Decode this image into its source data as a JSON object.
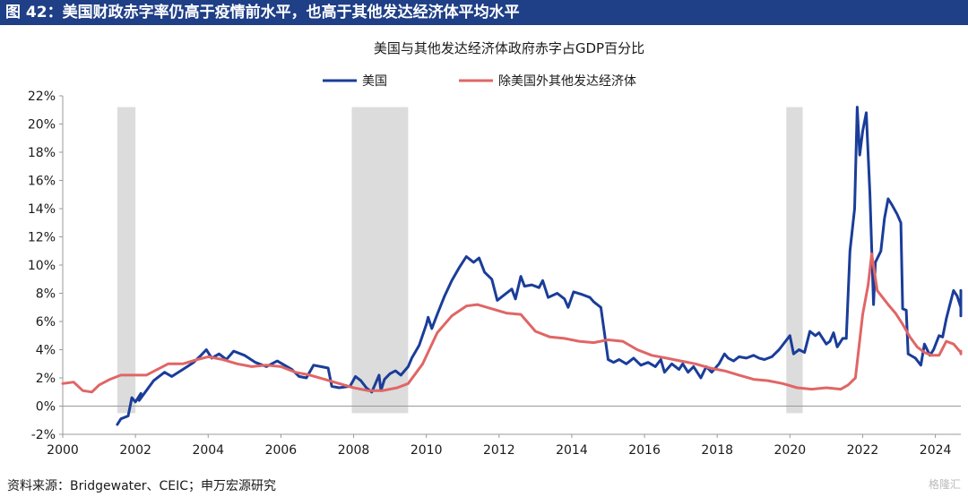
{
  "figure_title": "图 42：美国财政赤字率仍高于疫情前水平，也高于其他发达经济体平均水平",
  "source": "资料来源：Bridgewater、CEIC；申万宏源研究",
  "watermark": "格隆汇",
  "colors": {
    "header_bg": "#1f3f86",
    "us": "#1a3d99",
    "others": "#e06666",
    "shade": "#dcdcdc"
  },
  "chart_data": {
    "type": "line",
    "title": "美国与其他发达经济体政府赤字占GDP百分比",
    "xlim": [
      2000,
      2024.7
    ],
    "ylim": [
      -2,
      22
    ],
    "xticks": [
      2000,
      2002,
      2004,
      2006,
      2008,
      2010,
      2012,
      2014,
      2016,
      2018,
      2020,
      2022,
      2024
    ],
    "yticks": [
      -2,
      0,
      2,
      4,
      6,
      8,
      10,
      12,
      14,
      16,
      18,
      20,
      22
    ],
    "ytick_labels": [
      "-2%",
      "0%",
      "2%",
      "4%",
      "6%",
      "8%",
      "10%",
      "12%",
      "14%",
      "16%",
      "18%",
      "20%",
      "22%"
    ],
    "legend_position": "top-center",
    "recessions": [
      [
        2001.5,
        2002.0
      ],
      [
        2007.95,
        2009.5
      ],
      [
        2019.9,
        2020.35
      ]
    ],
    "series": [
      {
        "name": "美国",
        "color": "#1a3d99",
        "points": [
          [
            2001.5,
            -1.3
          ],
          [
            2001.6,
            -0.9
          ],
          [
            2001.8,
            -0.7
          ],
          [
            2001.9,
            0.6
          ],
          [
            2002.0,
            0.3
          ],
          [
            2002.15,
            0.9
          ],
          [
            2002.1,
            0.4
          ],
          [
            2002.3,
            1.1
          ],
          [
            2002.5,
            1.8
          ],
          [
            2002.8,
            2.4
          ],
          [
            2003.0,
            2.1
          ],
          [
            2003.3,
            2.6
          ],
          [
            2003.6,
            3.1
          ],
          [
            2003.8,
            3.6
          ],
          [
            2003.95,
            4.0
          ],
          [
            2004.1,
            3.4
          ],
          [
            2004.3,
            3.7
          ],
          [
            2004.5,
            3.3
          ],
          [
            2004.7,
            3.9
          ],
          [
            2005.0,
            3.6
          ],
          [
            2005.3,
            3.1
          ],
          [
            2005.6,
            2.8
          ],
          [
            2005.9,
            3.2
          ],
          [
            2006.1,
            2.9
          ],
          [
            2006.3,
            2.6
          ],
          [
            2006.5,
            2.1
          ],
          [
            2006.7,
            2.0
          ],
          [
            2006.9,
            2.9
          ],
          [
            2007.1,
            2.8
          ],
          [
            2007.3,
            2.7
          ],
          [
            2007.4,
            1.4
          ],
          [
            2007.6,
            1.3
          ],
          [
            2007.9,
            1.4
          ],
          [
            2008.05,
            2.1
          ],
          [
            2008.2,
            1.8
          ],
          [
            2008.35,
            1.3
          ],
          [
            2008.5,
            1.0
          ],
          [
            2008.6,
            1.6
          ],
          [
            2008.7,
            2.2
          ],
          [
            2008.75,
            1.1
          ],
          [
            2008.85,
            1.9
          ],
          [
            2009.0,
            2.3
          ],
          [
            2009.15,
            2.5
          ],
          [
            2009.3,
            2.2
          ],
          [
            2009.5,
            2.8
          ],
          [
            2009.6,
            3.4
          ],
          [
            2009.8,
            4.3
          ],
          [
            2010.0,
            5.8
          ],
          [
            2010.05,
            6.3
          ],
          [
            2010.15,
            5.5
          ],
          [
            2010.3,
            6.5
          ],
          [
            2010.5,
            7.8
          ],
          [
            2010.7,
            8.9
          ],
          [
            2010.9,
            9.8
          ],
          [
            2011.1,
            10.6
          ],
          [
            2011.3,
            10.2
          ],
          [
            2011.45,
            10.5
          ],
          [
            2011.6,
            9.5
          ],
          [
            2011.8,
            9.0
          ],
          [
            2011.95,
            7.5
          ],
          [
            2012.15,
            7.9
          ],
          [
            2012.35,
            8.3
          ],
          [
            2012.45,
            7.6
          ],
          [
            2012.6,
            9.2
          ],
          [
            2012.7,
            8.5
          ],
          [
            2012.9,
            8.6
          ],
          [
            2013.1,
            8.4
          ],
          [
            2013.2,
            8.9
          ],
          [
            2013.35,
            7.7
          ],
          [
            2013.6,
            8.0
          ],
          [
            2013.8,
            7.6
          ],
          [
            2013.9,
            7.0
          ],
          [
            2014.05,
            8.1
          ],
          [
            2014.3,
            7.9
          ],
          [
            2014.5,
            7.7
          ],
          [
            2014.6,
            7.4
          ],
          [
            2014.8,
            7.0
          ],
          [
            2015.0,
            3.3
          ],
          [
            2015.15,
            3.1
          ],
          [
            2015.3,
            3.3
          ],
          [
            2015.5,
            3.0
          ],
          [
            2015.7,
            3.4
          ],
          [
            2015.9,
            2.9
          ],
          [
            2016.1,
            3.1
          ],
          [
            2016.3,
            2.8
          ],
          [
            2016.45,
            3.3
          ],
          [
            2016.55,
            2.4
          ],
          [
            2016.75,
            3.0
          ],
          [
            2016.95,
            2.6
          ],
          [
            2017.05,
            3.0
          ],
          [
            2017.2,
            2.4
          ],
          [
            2017.35,
            2.8
          ],
          [
            2017.55,
            2.0
          ],
          [
            2017.7,
            2.8
          ],
          [
            2017.85,
            2.4
          ],
          [
            2018.05,
            3.0
          ],
          [
            2018.2,
            3.7
          ],
          [
            2018.3,
            3.4
          ],
          [
            2018.45,
            3.2
          ],
          [
            2018.6,
            3.5
          ],
          [
            2018.8,
            3.4
          ],
          [
            2019.0,
            3.6
          ],
          [
            2019.15,
            3.4
          ],
          [
            2019.3,
            3.3
          ],
          [
            2019.5,
            3.5
          ],
          [
            2019.7,
            4.0
          ],
          [
            2019.85,
            4.5
          ],
          [
            2020.0,
            5.0
          ],
          [
            2020.1,
            3.7
          ],
          [
            2020.25,
            4.0
          ],
          [
            2020.4,
            3.8
          ],
          [
            2020.55,
            5.3
          ],
          [
            2020.7,
            5.0
          ],
          [
            2020.8,
            5.2
          ],
          [
            2021.0,
            4.4
          ],
          [
            2021.1,
            4.6
          ],
          [
            2021.2,
            5.2
          ],
          [
            2021.3,
            4.2
          ],
          [
            2021.45,
            4.8
          ],
          [
            2021.55,
            4.8
          ],
          [
            2021.65,
            11.0
          ],
          [
            2021.78,
            14.0
          ],
          [
            2021.85,
            21.2
          ],
          [
            2021.92,
            17.8
          ],
          [
            2022.0,
            19.5
          ],
          [
            2022.1,
            20.8
          ],
          [
            2022.2,
            15.0
          ],
          [
            2022.3,
            7.2
          ],
          [
            2022.35,
            10.2
          ],
          [
            2022.5,
            11.0
          ],
          [
            2022.6,
            13.3
          ],
          [
            2022.7,
            14.7
          ],
          [
            2022.8,
            14.3
          ],
          [
            2022.95,
            13.6
          ],
          [
            2023.05,
            13.0
          ],
          [
            2023.1,
            6.9
          ],
          [
            2023.2,
            6.8
          ],
          [
            2023.25,
            3.7
          ],
          [
            2023.45,
            3.4
          ],
          [
            2023.6,
            2.9
          ],
          [
            2023.7,
            4.4
          ],
          [
            2023.85,
            3.6
          ],
          [
            2023.95,
            4.0
          ],
          [
            2024.1,
            5.0
          ],
          [
            2024.2,
            4.9
          ],
          [
            2024.3,
            6.2
          ],
          [
            2024.4,
            7.2
          ],
          [
            2024.5,
            8.2
          ],
          [
            2024.6,
            7.8
          ],
          [
            2024.8,
            7.0
          ],
          [
            2024.95,
            7.3
          ],
          [
            2025.05,
            6.4
          ],
          [
            2025.15,
            8.2
          ],
          [
            2025.25,
            7.3
          ]
        ]
      },
      {
        "name": "除美国外其他发达经济体",
        "color": "#e06666",
        "points": [
          [
            2000.0,
            1.6
          ],
          [
            2000.3,
            1.7
          ],
          [
            2000.55,
            1.1
          ],
          [
            2000.8,
            1.0
          ],
          [
            2001.0,
            1.5
          ],
          [
            2001.3,
            1.9
          ],
          [
            2001.6,
            2.2
          ],
          [
            2002.0,
            2.2
          ],
          [
            2002.3,
            2.2
          ],
          [
            2002.6,
            2.6
          ],
          [
            2002.9,
            3.0
          ],
          [
            2003.3,
            3.0
          ],
          [
            2003.7,
            3.3
          ],
          [
            2004.0,
            3.5
          ],
          [
            2004.4,
            3.3
          ],
          [
            2004.8,
            3.0
          ],
          [
            2005.2,
            2.8
          ],
          [
            2005.6,
            2.9
          ],
          [
            2006.0,
            2.8
          ],
          [
            2006.4,
            2.4
          ],
          [
            2006.8,
            2.2
          ],
          [
            2007.2,
            1.9
          ],
          [
            2007.6,
            1.6
          ],
          [
            2008.0,
            1.3
          ],
          [
            2008.4,
            1.1
          ],
          [
            2008.8,
            1.1
          ],
          [
            2009.2,
            1.3
          ],
          [
            2009.5,
            1.6
          ],
          [
            2009.9,
            3.0
          ],
          [
            2010.3,
            5.2
          ],
          [
            2010.7,
            6.4
          ],
          [
            2011.1,
            7.1
          ],
          [
            2011.4,
            7.2
          ],
          [
            2011.8,
            6.9
          ],
          [
            2012.2,
            6.6
          ],
          [
            2012.6,
            6.5
          ],
          [
            2013.0,
            5.3
          ],
          [
            2013.4,
            4.9
          ],
          [
            2013.8,
            4.8
          ],
          [
            2014.2,
            4.6
          ],
          [
            2014.6,
            4.5
          ],
          [
            2015.0,
            4.7
          ],
          [
            2015.4,
            4.6
          ],
          [
            2015.8,
            4.0
          ],
          [
            2016.2,
            3.6
          ],
          [
            2016.6,
            3.4
          ],
          [
            2017.0,
            3.2
          ],
          [
            2017.4,
            3.0
          ],
          [
            2017.8,
            2.7
          ],
          [
            2018.2,
            2.5
          ],
          [
            2018.6,
            2.2
          ],
          [
            2019.0,
            1.9
          ],
          [
            2019.4,
            1.8
          ],
          [
            2019.8,
            1.6
          ],
          [
            2020.2,
            1.3
          ],
          [
            2020.6,
            1.2
          ],
          [
            2021.0,
            1.3
          ],
          [
            2021.4,
            1.2
          ],
          [
            2021.6,
            1.5
          ],
          [
            2021.8,
            2.0
          ],
          [
            2022.0,
            6.5
          ],
          [
            2022.15,
            8.6
          ],
          [
            2022.25,
            10.8
          ],
          [
            2022.4,
            8.2
          ],
          [
            2022.7,
            7.2
          ],
          [
            2022.9,
            6.6
          ],
          [
            2023.1,
            5.8
          ],
          [
            2023.3,
            4.9
          ],
          [
            2023.5,
            4.2
          ],
          [
            2023.7,
            3.8
          ],
          [
            2023.9,
            3.6
          ],
          [
            2024.1,
            3.6
          ],
          [
            2024.3,
            4.6
          ],
          [
            2024.5,
            4.4
          ],
          [
            2024.7,
            3.8
          ],
          [
            2024.9,
            3.7
          ],
          [
            2025.1,
            3.9
          ],
          [
            2025.3,
            3.8
          ]
        ]
      }
    ]
  }
}
